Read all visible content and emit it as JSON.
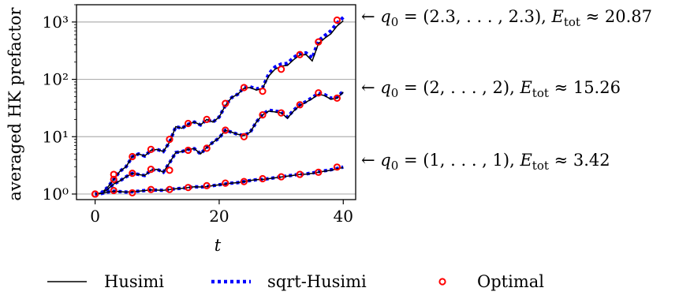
{
  "chart_data": {
    "type": "line",
    "xlabel": "t",
    "ylabel": "averaged HK prefactor",
    "xlim": [
      -3,
      42
    ],
    "ylim": [
      0.8,
      2000
    ],
    "yscale": "log",
    "grid": "horizontal",
    "xticks": [
      0,
      20,
      40
    ],
    "xtick_labels": [
      "0",
      "20",
      "40"
    ],
    "yticks": [
      1,
      10,
      100,
      1000
    ],
    "ytick_labels": [
      "10⁰",
      "10¹",
      "10²",
      "10³"
    ],
    "legend_position": "bottom",
    "series": [
      {
        "name": "Husimi",
        "color": "#000000",
        "style": "solid"
      },
      {
        "name": "sqrt-Husimi",
        "color": "#0000ff",
        "style": "dotted"
      },
      {
        "name": "Optimal",
        "color": "#ff0000",
        "style": "markers"
      }
    ],
    "curves": [
      {
        "annotation": "← q₀ = (2.3, . . . , 2.3), E_tot ≈ 20.87",
        "annotation_parts": {
          "arrow": "← ",
          "q": "q",
          "q_sub": "0",
          "q_rest": " = (2.3, . . . , 2.3), ",
          "e": "E",
          "e_sub": "tot",
          "e_rest": " ≈ 20.87"
        },
        "husimi": [
          [
            0,
            1.0
          ],
          [
            1,
            1.05
          ],
          [
            2,
            1.3
          ],
          [
            3,
            1.8
          ],
          [
            4,
            2.5
          ],
          [
            5,
            3.0
          ],
          [
            6,
            4.5
          ],
          [
            7,
            5.0
          ],
          [
            8,
            4.6
          ],
          [
            9,
            5.8
          ],
          [
            10,
            6.0
          ],
          [
            11,
            5.5
          ],
          [
            12,
            8.0
          ],
          [
            13,
            15.0
          ],
          [
            14,
            14.0
          ],
          [
            15,
            16.5
          ],
          [
            16,
            18.0
          ],
          [
            17,
            16.0
          ],
          [
            18,
            20.0
          ],
          [
            19,
            18.0
          ],
          [
            20,
            22.0
          ],
          [
            21,
            35.0
          ],
          [
            22,
            48.0
          ],
          [
            23,
            55.0
          ],
          [
            24,
            70.0
          ],
          [
            25,
            72.0
          ],
          [
            26,
            65.0
          ],
          [
            27,
            70.0
          ],
          [
            28,
            115.0
          ],
          [
            29,
            150.0
          ],
          [
            30,
            170.0
          ],
          [
            31,
            175.0
          ],
          [
            32,
            220.0
          ],
          [
            33,
            265.0
          ],
          [
            34,
            270.0
          ],
          [
            35,
            210.0
          ],
          [
            36,
            420.0
          ],
          [
            37,
            520.0
          ],
          [
            38,
            620.0
          ],
          [
            39,
            850.0
          ],
          [
            40,
            1050.0
          ]
        ],
        "sqrt_husimi": [
          [
            0,
            1.0
          ],
          [
            1,
            1.05
          ],
          [
            2,
            1.3
          ],
          [
            3,
            1.8
          ],
          [
            4,
            2.5
          ],
          [
            5,
            3.0
          ],
          [
            6,
            4.5
          ],
          [
            7,
            5.0
          ],
          [
            8,
            4.6
          ],
          [
            9,
            5.8
          ],
          [
            10,
            6.0
          ],
          [
            11,
            5.5
          ],
          [
            12,
            8.0
          ],
          [
            13,
            15.0
          ],
          [
            14,
            14.0
          ],
          [
            15,
            16.5
          ],
          [
            16,
            18.0
          ],
          [
            17,
            16.0
          ],
          [
            18,
            20.0
          ],
          [
            19,
            18.0
          ],
          [
            20,
            22.0
          ],
          [
            21,
            35.0
          ],
          [
            22,
            48.0
          ],
          [
            23,
            55.0
          ],
          [
            24,
            72.0
          ],
          [
            25,
            74.0
          ],
          [
            26,
            68.0
          ],
          [
            27,
            72.0
          ],
          [
            28,
            125.0
          ],
          [
            29,
            165.0
          ],
          [
            30,
            185.0
          ],
          [
            31,
            190.0
          ],
          [
            32,
            240.0
          ],
          [
            33,
            285.0
          ],
          [
            34,
            290.0
          ],
          [
            35,
            235.0
          ],
          [
            36,
            470.0
          ],
          [
            37,
            580.0
          ],
          [
            38,
            700.0
          ],
          [
            39,
            960.0
          ],
          [
            40,
            1200.0
          ]
        ],
        "optimal": [
          [
            0,
            1.0
          ],
          [
            3,
            2.2
          ],
          [
            6,
            4.5
          ],
          [
            9,
            6.0
          ],
          [
            12,
            9.0
          ],
          [
            15,
            17.0
          ],
          [
            18,
            20.0
          ],
          [
            21,
            38.0
          ],
          [
            24,
            72.0
          ],
          [
            27,
            62.0
          ],
          [
            30,
            150.0
          ],
          [
            33,
            270.0
          ],
          [
            36,
            450.0
          ],
          [
            39,
            1080.0
          ]
        ]
      },
      {
        "annotation": "← q₀ = (2, . . . , 2), E_tot ≈ 15.26",
        "annotation_parts": {
          "arrow": "← ",
          "q": "q",
          "q_sub": "0",
          "q_rest": " = (2, . . . , 2), ",
          "e": "E",
          "e_sub": "tot",
          "e_rest": " ≈ 15.26"
        },
        "husimi": [
          [
            0,
            1.0
          ],
          [
            1,
            1.02
          ],
          [
            2,
            1.2
          ],
          [
            3,
            1.5
          ],
          [
            4,
            1.7
          ],
          [
            5,
            2.0
          ],
          [
            6,
            2.3
          ],
          [
            7,
            2.2
          ],
          [
            8,
            2.1
          ],
          [
            9,
            2.6
          ],
          [
            10,
            2.7
          ],
          [
            11,
            2.4
          ],
          [
            12,
            3.5
          ],
          [
            13,
            5.3
          ],
          [
            14,
            5.5
          ],
          [
            15,
            6.0
          ],
          [
            16,
            6.2
          ],
          [
            17,
            5.0
          ],
          [
            18,
            6.5
          ],
          [
            19,
            8.0
          ],
          [
            20,
            9.5
          ],
          [
            21,
            13.0
          ],
          [
            22,
            12.0
          ],
          [
            23,
            11.0
          ],
          [
            24,
            10.5
          ],
          [
            25,
            12.0
          ],
          [
            26,
            18.0
          ],
          [
            27,
            24.0
          ],
          [
            28,
            28.0
          ],
          [
            29,
            27.0
          ],
          [
            30,
            26.0
          ],
          [
            31,
            21.0
          ],
          [
            32,
            28.0
          ],
          [
            33,
            35.0
          ],
          [
            34,
            40.0
          ],
          [
            35,
            46.0
          ],
          [
            36,
            55.0
          ],
          [
            37,
            52.0
          ],
          [
            38,
            45.0
          ],
          [
            39,
            47.0
          ],
          [
            40,
            60.0
          ]
        ],
        "sqrt_husimi": [
          [
            0,
            1.0
          ],
          [
            1,
            1.02
          ],
          [
            2,
            1.2
          ],
          [
            3,
            1.5
          ],
          [
            4,
            1.7
          ],
          [
            5,
            2.0
          ],
          [
            6,
            2.3
          ],
          [
            7,
            2.2
          ],
          [
            8,
            2.1
          ],
          [
            9,
            2.6
          ],
          [
            10,
            2.7
          ],
          [
            11,
            2.4
          ],
          [
            12,
            3.5
          ],
          [
            13,
            5.3
          ],
          [
            14,
            5.5
          ],
          [
            15,
            6.0
          ],
          [
            16,
            6.2
          ],
          [
            17,
            5.0
          ],
          [
            18,
            6.5
          ],
          [
            19,
            8.0
          ],
          [
            20,
            9.5
          ],
          [
            21,
            13.0
          ],
          [
            22,
            12.0
          ],
          [
            23,
            11.0
          ],
          [
            24,
            10.5
          ],
          [
            25,
            12.0
          ],
          [
            26,
            18.0
          ],
          [
            27,
            24.5
          ],
          [
            28,
            29.0
          ],
          [
            29,
            28.0
          ],
          [
            30,
            27.0
          ],
          [
            31,
            22.0
          ],
          [
            32,
            29.0
          ],
          [
            33,
            36.0
          ],
          [
            34,
            41.0
          ],
          [
            35,
            48.0
          ],
          [
            36,
            57.0
          ],
          [
            37,
            54.0
          ],
          [
            38,
            47.0
          ],
          [
            39,
            49.0
          ],
          [
            40,
            62.0
          ]
        ],
        "optimal": [
          [
            0,
            1.0
          ],
          [
            3,
            1.8
          ],
          [
            6,
            2.3
          ],
          [
            9,
            2.7
          ],
          [
            12,
            2.6
          ],
          [
            15,
            5.8
          ],
          [
            18,
            6.3
          ],
          [
            21,
            13.0
          ],
          [
            24,
            10.0
          ],
          [
            27,
            24.0
          ],
          [
            30,
            26.0
          ],
          [
            33,
            36.0
          ],
          [
            36,
            58.0
          ],
          [
            39,
            47.0
          ]
        ]
      },
      {
        "annotation": "← q₀ = (1, . . . , 1), E_tot ≈ 3.42",
        "annotation_parts": {
          "arrow": "← ",
          "q": "q",
          "q_sub": "0",
          "q_rest": " = (1, . . . , 1), ",
          "e": "E",
          "e_sub": "tot",
          "e_rest": " ≈ 3.42"
        },
        "husimi": [
          [
            0,
            1.0
          ],
          [
            1,
            1.02
          ],
          [
            2,
            1.08
          ],
          [
            3,
            1.12
          ],
          [
            4,
            1.1
          ],
          [
            5,
            1.08
          ],
          [
            6,
            1.1
          ],
          [
            7,
            1.12
          ],
          [
            8,
            1.15
          ],
          [
            9,
            1.18
          ],
          [
            10,
            1.17
          ],
          [
            11,
            1.16
          ],
          [
            12,
            1.2
          ],
          [
            13,
            1.24
          ],
          [
            14,
            1.26
          ],
          [
            15,
            1.3
          ],
          [
            16,
            1.34
          ],
          [
            17,
            1.33
          ],
          [
            18,
            1.35
          ],
          [
            19,
            1.4
          ],
          [
            20,
            1.45
          ],
          [
            21,
            1.5
          ],
          [
            22,
            1.55
          ],
          [
            23,
            1.58
          ],
          [
            24,
            1.65
          ],
          [
            25,
            1.72
          ],
          [
            26,
            1.78
          ],
          [
            27,
            1.8
          ],
          [
            28,
            1.85
          ],
          [
            29,
            1.92
          ],
          [
            30,
            1.98
          ],
          [
            31,
            2.05
          ],
          [
            32,
            2.12
          ],
          [
            33,
            2.2
          ],
          [
            34,
            2.22
          ],
          [
            35,
            2.3
          ],
          [
            36,
            2.4
          ],
          [
            37,
            2.5
          ],
          [
            38,
            2.6
          ],
          [
            39,
            2.75
          ],
          [
            40,
            2.9
          ]
        ],
        "sqrt_husimi": [
          [
            0,
            1.0
          ],
          [
            1,
            1.02
          ],
          [
            2,
            1.08
          ],
          [
            3,
            1.12
          ],
          [
            4,
            1.1
          ],
          [
            5,
            1.08
          ],
          [
            6,
            1.1
          ],
          [
            7,
            1.12
          ],
          [
            8,
            1.15
          ],
          [
            9,
            1.18
          ],
          [
            10,
            1.17
          ],
          [
            11,
            1.16
          ],
          [
            12,
            1.2
          ],
          [
            13,
            1.24
          ],
          [
            14,
            1.26
          ],
          [
            15,
            1.3
          ],
          [
            16,
            1.34
          ],
          [
            17,
            1.33
          ],
          [
            18,
            1.35
          ],
          [
            19,
            1.4
          ],
          [
            20,
            1.45
          ],
          [
            21,
            1.5
          ],
          [
            22,
            1.55
          ],
          [
            23,
            1.58
          ],
          [
            24,
            1.65
          ],
          [
            25,
            1.72
          ],
          [
            26,
            1.78
          ],
          [
            27,
            1.8
          ],
          [
            28,
            1.86
          ],
          [
            29,
            1.93
          ],
          [
            30,
            2.0
          ],
          [
            31,
            2.07
          ],
          [
            32,
            2.14
          ],
          [
            33,
            2.22
          ],
          [
            34,
            2.25
          ],
          [
            35,
            2.33
          ],
          [
            36,
            2.45
          ],
          [
            37,
            2.55
          ],
          [
            38,
            2.65
          ],
          [
            39,
            2.8
          ],
          [
            40,
            2.95
          ]
        ],
        "optimal": [
          [
            0,
            1.0
          ],
          [
            3,
            1.15
          ],
          [
            6,
            1.05
          ],
          [
            9,
            1.2
          ],
          [
            12,
            1.2
          ],
          [
            15,
            1.3
          ],
          [
            18,
            1.4
          ],
          [
            21,
            1.55
          ],
          [
            24,
            1.65
          ],
          [
            27,
            1.85
          ],
          [
            30,
            2.0
          ],
          [
            33,
            2.2
          ],
          [
            36,
            2.4
          ],
          [
            39,
            2.95
          ]
        ]
      }
    ]
  }
}
